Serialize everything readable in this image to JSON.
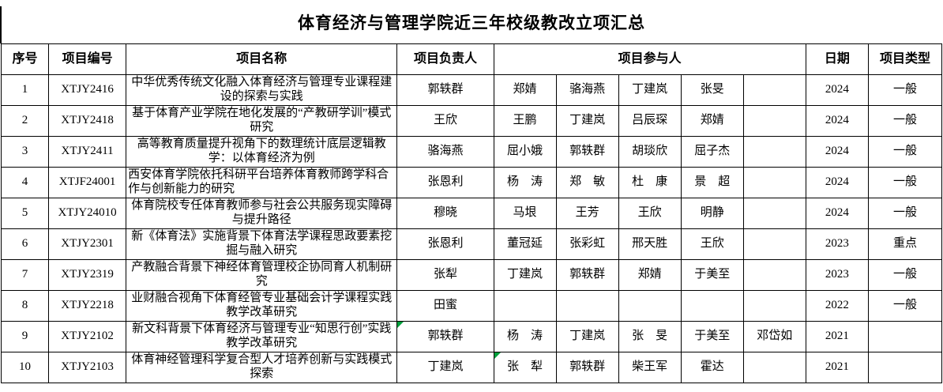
{
  "title": "体育经济与管理学院近三年校级教改立项汇总",
  "table": {
    "headers": {
      "index": "序号",
      "code": "项目编号",
      "name": "项目名称",
      "leader": "项目负责人",
      "participants": "项目参与人",
      "date": "日期",
      "type": "项目类型"
    },
    "rows": [
      {
        "index": "1",
        "code": "XTJY2416",
        "name": "中华优秀传统文化融入体育经济与管理专业课程建设的探索与实践",
        "leader": "郭轶群",
        "participants": [
          "郑婧",
          "骆海燕",
          "丁建岚",
          "张旻",
          ""
        ],
        "date": "2024",
        "type": "一般"
      },
      {
        "index": "2",
        "code": "XTJY2418",
        "name": "基于体育产业学院在地化发展的“产教研学训”模式研究",
        "leader": "王欣",
        "participants": [
          "王鹏",
          "丁建岚",
          "吕辰琛",
          "郑婧",
          ""
        ],
        "date": "2024",
        "type": "一般"
      },
      {
        "index": "3",
        "code": "XTJY2411",
        "name": "高等教育质量提升视角下的数理统计底层逻辑教学：以体育经济为例",
        "leader": "骆海燕",
        "participants": [
          "屈小娥",
          "郭轶群",
          "胡琰欣",
          "屈子杰",
          ""
        ],
        "date": "2024",
        "type": "一般"
      },
      {
        "index": "4",
        "code": "XTJF24001",
        "name": "西安体育学院依托科研平台培养体育教师跨学科合作与创新能力的研究",
        "name_align": "left",
        "leader": "张恩利",
        "participants": [
          "杨　涛",
          "郑　敏",
          "杜　康",
          "景　超",
          ""
        ],
        "date": "2024",
        "type": "一般"
      },
      {
        "index": "5",
        "code": "XTJY24010",
        "name": "体育院校专任体育教师参与社会公共服务现实障碍与提升路径",
        "leader": "穆晓",
        "participants": [
          "马垠",
          "王芳",
          "王欣",
          "明静",
          ""
        ],
        "date": "2024",
        "type": "一般"
      },
      {
        "index": "6",
        "code": "XTJY2301",
        "name": "新《体育法》实施背景下体育法学课程思政要素挖掘与融入研究",
        "leader": "张恩利",
        "participants": [
          "董冠延",
          "张彩虹",
          "邢天胜",
          "王欣",
          ""
        ],
        "date": "2023",
        "type": "重点"
      },
      {
        "index": "7",
        "code": "XTJY2319",
        "name": "产教融合背景下神经体育管理校企协同育人机制研究",
        "leader": "张犁",
        "participants": [
          "丁建岚",
          "郭轶群",
          "郑婧",
          "于美至",
          ""
        ],
        "date": "2023",
        "type": "一般"
      },
      {
        "index": "8",
        "code": "XTJY2218",
        "name": "业财融合视角下体育经管专业基础会计学课程实践教学改革研究",
        "leader": "田蜜",
        "participants": [
          "",
          "",
          "",
          "",
          ""
        ],
        "date": "2022",
        "type": "一般"
      },
      {
        "index": "9",
        "code": "XTJY2102",
        "name": "新文科背景下体育经济与管理专业“知思行创”实践教学改革研究",
        "leader": "郭轶群",
        "leader_mark": true,
        "participants": [
          "杨　涛",
          "丁建岚",
          "张　旻",
          "于美至",
          "邓岱如"
        ],
        "date": "2021",
        "type": ""
      },
      {
        "index": "10",
        "code": "XTJY2103",
        "name": "体育神经管理科学复合型人才培养创新与实践模式探索",
        "leader": "丁建岚",
        "participants": [
          "张　犁",
          "郭轶群",
          "柴王军",
          "霍达",
          ""
        ],
        "participant_marks": [
          0
        ],
        "date": "2021",
        "type": ""
      }
    ]
  }
}
